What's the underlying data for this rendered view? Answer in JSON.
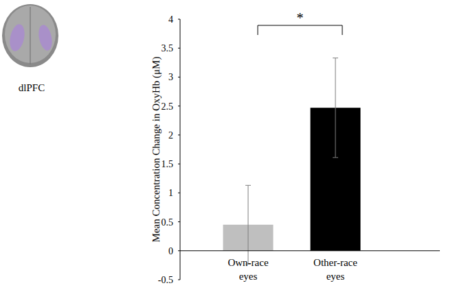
{
  "chart_data": {
    "type": "bar",
    "title": "dlPFC",
    "y_label": "Mean Concentration Change in OxyHb (μM)",
    "categories": [
      "Own-race eyes",
      "Other-race eyes"
    ],
    "values": [
      0.45,
      2.47
    ],
    "errors": [
      0.68,
      0.86
    ],
    "colors": [
      "#bfbfbf",
      "#000000"
    ],
    "ylim": [
      -0.5,
      4
    ],
    "yticks": [
      -0.5,
      0,
      0.5,
      1,
      1.5,
      2,
      2.5,
      3,
      3.5,
      4
    ],
    "grid": false,
    "annotations": [
      {
        "text": "*",
        "between": [
          "Own-race eyes",
          "Other-race eyes"
        ]
      }
    ]
  }
}
